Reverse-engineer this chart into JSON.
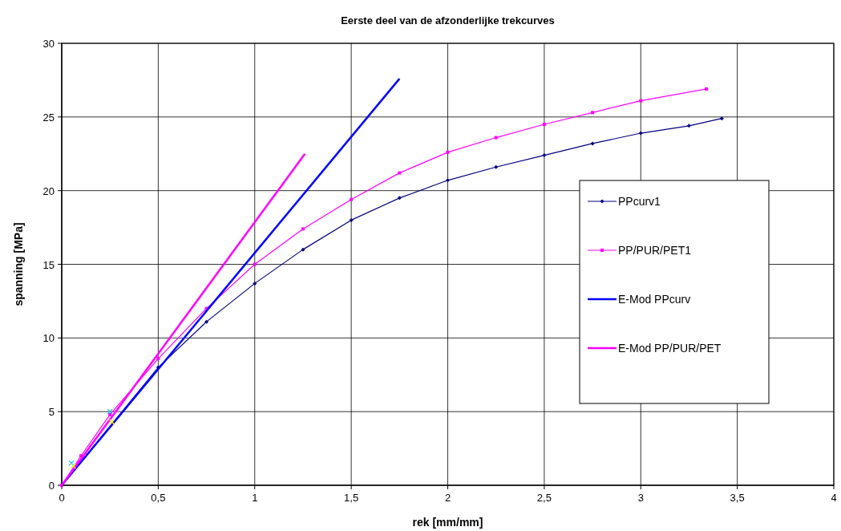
{
  "chart_data": {
    "type": "line",
    "title": "Eerste deel van de afzonderlijke trekcurves",
    "xlabel": "rek [mm/mm]",
    "ylabel": "spanning [MPa]",
    "xlim": [
      0,
      4
    ],
    "ylim": [
      0,
      30
    ],
    "xticks": [
      0,
      {
        "value": 0.5,
        "label": "0,5"
      },
      1,
      {
        "value": 1.5,
        "label": "1,5"
      },
      2,
      {
        "value": 2.5,
        "label": "2,5"
      },
      3,
      {
        "value": 3.5,
        "label": "3,5"
      },
      4
    ],
    "yticks": [
      0,
      5,
      10,
      15,
      20,
      25,
      30
    ],
    "grid": true,
    "legend": "right",
    "series": [
      {
        "name": "PPcurv1",
        "color": "#000080",
        "marker": "diamond",
        "x": [
          0,
          0.5,
          0.75,
          1,
          1.25,
          1.5,
          1.75,
          2,
          2.25,
          2.5,
          2.75,
          3,
          3.25,
          3.42
        ],
        "values": [
          0,
          8.0,
          11.1,
          13.7,
          16.0,
          18.0,
          19.5,
          20.7,
          21.6,
          22.4,
          23.2,
          23.9,
          24.4,
          24.9
        ]
      },
      {
        "name": "PP/PUR/PET1",
        "color": "#ff00ff",
        "marker": "square",
        "x": [
          0,
          0.1,
          0.25,
          0.5,
          0.75,
          1,
          1.25,
          1.5,
          1.75,
          2,
          2.25,
          2.5,
          2.75,
          3,
          3.34
        ],
        "values": [
          0,
          2.0,
          4.8,
          8.6,
          12.0,
          15.0,
          17.4,
          19.4,
          21.2,
          22.6,
          23.6,
          24.5,
          25.3,
          26.1,
          26.9
        ]
      },
      {
        "name": "E-Mod PPcurv",
        "color": "#0000ff",
        "marker": "none",
        "x": [
          0,
          1.75
        ],
        "values": [
          0,
          27.6
        ]
      },
      {
        "name": "E-Mod PP/PUR/PET",
        "color": "#ff00ff",
        "marker": "none",
        "x": [
          0,
          1.26
        ],
        "values": [
          0,
          22.5
        ]
      },
      {
        "type": "scatter",
        "color": "#00ccff",
        "marker": "cross",
        "x": [
          0.05,
          0.25
        ],
        "values": [
          1.5,
          5.0
        ]
      },
      {
        "type": "scatter",
        "color": "#ffff00",
        "marker": "cross",
        "x": [
          0.06,
          0.26
        ],
        "values": [
          1.3,
          4.3
        ]
      }
    ]
  }
}
